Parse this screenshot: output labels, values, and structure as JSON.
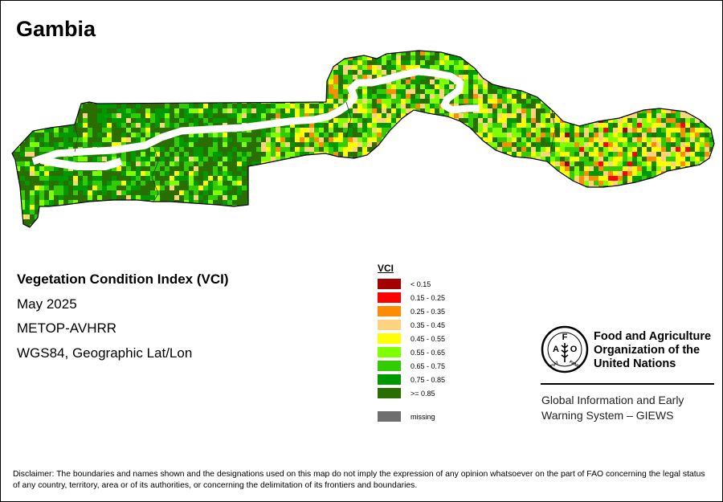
{
  "map": {
    "title": "Gambia",
    "info_lines": [
      "Vegetation Condition Index (VCI)",
      "May 2025",
      "METOP-AVHRR",
      "WGS84, Geographic Lat/Lon"
    ]
  },
  "legend": {
    "title": "VCI",
    "items": [
      {
        "label": "< 0.15",
        "color": "#a50000"
      },
      {
        "label": "0.15 - 0.25",
        "color": "#ff0000"
      },
      {
        "label": "0.25 - 0.35",
        "color": "#ff8c00"
      },
      {
        "label": "0.35 - 0.45",
        "color": "#ffd27f"
      },
      {
        "label": "0.45 - 0.55",
        "color": "#ffff00"
      },
      {
        "label": "0.55 - 0.65",
        "color": "#7fff00"
      },
      {
        "label": "0.65 - 0.75",
        "color": "#32cd00"
      },
      {
        "label": "0.75 - 0.85",
        "color": "#009900"
      },
      {
        "label": ">= 0.85",
        "color": "#2a6e00"
      }
    ],
    "missing": {
      "label": "missing",
      "color": "#6e6e6e"
    }
  },
  "fao": {
    "emblem_icon": "fao-emblem-icon",
    "emblem_text": [
      "F",
      "A",
      "O",
      "FIAT",
      "PANIS"
    ],
    "name_lines": [
      "Food and Agriculture",
      "Organization of the",
      "United Nations"
    ],
    "giews_lines": [
      "Global Information and Early",
      "Warning System – GIEWS"
    ]
  },
  "disclaimer": "Disclaimer: The boundaries and names shown and the designations used on this map do not imply the expression of any opinion whatsoever on the part of FAO concerning the legal status of any country, territory, area or of its authorities, or concerning the delimitation of its frontiers and boundaries."
}
